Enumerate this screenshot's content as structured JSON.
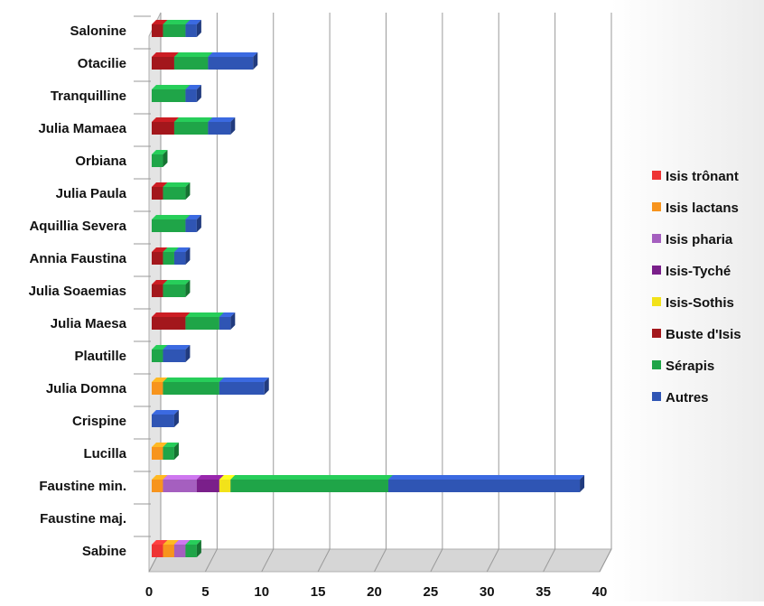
{
  "chart_data": {
    "type": "bar",
    "orientation": "horizontal",
    "stacked": true,
    "three_d": true,
    "categories": [
      "Sabine",
      "Faustine maj.",
      "Faustine min.",
      "Lucilla",
      "Crispine",
      "Julia Domna",
      "Plautille",
      "Julia Maesa",
      "Julia Soaemias",
      "Annia Faustina",
      "Aquillia Severa",
      "Julia Paula",
      "Orbiana",
      "Julia Mamaea",
      "Tranquilline",
      "Otacilie",
      "Salonine"
    ],
    "series": [
      {
        "name": "Isis trônant",
        "color": "#ee3333",
        "values": [
          1,
          0,
          0,
          0,
          0,
          0,
          0,
          0,
          0,
          0,
          0,
          0,
          0,
          0,
          0,
          0,
          0
        ]
      },
      {
        "name": "Isis lactans",
        "color": "#f7941d",
        "values": [
          1,
          0,
          1,
          1,
          0,
          1,
          0,
          0,
          0,
          0,
          0,
          0,
          0,
          0,
          0,
          0,
          0
        ]
      },
      {
        "name": "Isis pharia",
        "color": "#a55fbf",
        "values": [
          1,
          0,
          3,
          0,
          0,
          0,
          0,
          0,
          0,
          0,
          0,
          0,
          0,
          0,
          0,
          0,
          0
        ]
      },
      {
        "name": "Isis-Tyché",
        "color": "#7a1f8a",
        "values": [
          0,
          0,
          2,
          0,
          0,
          0,
          0,
          0,
          0,
          0,
          0,
          0,
          0,
          0,
          0,
          0,
          0
        ]
      },
      {
        "name": "Isis-Sothis",
        "color": "#f2e21a",
        "values": [
          0,
          0,
          1,
          0,
          0,
          0,
          0,
          0,
          0,
          0,
          0,
          0,
          0,
          0,
          0,
          0,
          0
        ]
      },
      {
        "name": "Buste d'Isis",
        "color": "#a3171c",
        "values": [
          0,
          0,
          0,
          0,
          0,
          0,
          0,
          3,
          1,
          1,
          0,
          1,
          0,
          2,
          0,
          2,
          1
        ]
      },
      {
        "name": "Sérapis",
        "color": "#1fa548",
        "values": [
          1,
          0,
          14,
          1,
          0,
          5,
          1,
          3,
          2,
          1,
          3,
          2,
          1,
          3,
          3,
          3,
          2
        ]
      },
      {
        "name": "Autres",
        "color": "#2f55b4",
        "values": [
          0,
          0,
          17,
          0,
          2,
          4,
          2,
          1,
          0,
          1,
          1,
          0,
          0,
          2,
          1,
          4,
          1
        ]
      }
    ],
    "xlim": [
      0,
      40
    ],
    "xticks": [
      0,
      5,
      10,
      15,
      20,
      25,
      30,
      35,
      40
    ],
    "grid": true,
    "legend_position": "right"
  }
}
